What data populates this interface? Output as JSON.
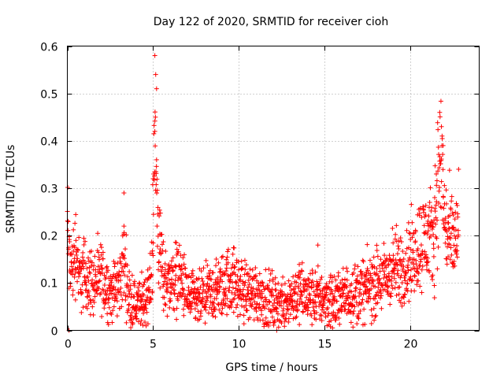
{
  "chart_data": {
    "type": "scatter",
    "title": "Day 122 of 2020, SRMTID for receiver cioh",
    "xlabel": "GPS time / hours",
    "ylabel": "SRMTID / TECUs",
    "xlim": [
      0,
      24
    ],
    "ylim": [
      0,
      0.6
    ],
    "xticks": [
      0,
      5,
      10,
      15,
      20
    ],
    "yticks": [
      0,
      0.1,
      0.2,
      0.3,
      0.4,
      0.5,
      0.6
    ],
    "x_tick_labels": [
      "0",
      "5",
      "10",
      "15",
      "20"
    ],
    "y_tick_labels": [
      "0",
      "0.1",
      "0.2",
      "0.3",
      "0.4",
      "0.5",
      "0.6"
    ],
    "grid": true,
    "marker": "+",
    "color": "#ff0000",
    "series": [
      {
        "name": "SRMTID",
        "trend": [
          [
            0.0,
            0.24
          ],
          [
            0.1,
            0.14
          ],
          [
            0.3,
            0.13
          ],
          [
            0.5,
            0.18
          ],
          [
            0.7,
            0.11
          ],
          [
            1.0,
            0.12
          ],
          [
            1.5,
            0.1
          ],
          [
            2.0,
            0.11
          ],
          [
            2.5,
            0.08
          ],
          [
            3.0,
            0.09
          ],
          [
            3.3,
            0.15
          ],
          [
            3.6,
            0.07
          ],
          [
            4.0,
            0.05
          ],
          [
            4.5,
            0.06
          ],
          [
            4.9,
            0.1
          ],
          [
            5.1,
            0.4
          ],
          [
            5.3,
            0.2
          ],
          [
            5.6,
            0.11
          ],
          [
            6.0,
            0.1
          ],
          [
            6.5,
            0.12
          ],
          [
            7.0,
            0.07
          ],
          [
            7.5,
            0.06
          ],
          [
            8.0,
            0.07
          ],
          [
            8.5,
            0.08
          ],
          [
            9.0,
            0.09
          ],
          [
            9.5,
            0.11
          ],
          [
            10.0,
            0.09
          ],
          [
            10.5,
            0.08
          ],
          [
            11.0,
            0.08
          ],
          [
            11.5,
            0.07
          ],
          [
            12.0,
            0.06
          ],
          [
            12.5,
            0.06
          ],
          [
            13.0,
            0.07
          ],
          [
            13.5,
            0.08
          ],
          [
            14.0,
            0.07
          ],
          [
            14.5,
            0.07
          ],
          [
            15.0,
            0.07
          ],
          [
            15.5,
            0.06
          ],
          [
            16.0,
            0.07
          ],
          [
            16.5,
            0.08
          ],
          [
            17.0,
            0.08
          ],
          [
            17.5,
            0.09
          ],
          [
            18.0,
            0.1
          ],
          [
            18.5,
            0.11
          ],
          [
            19.0,
            0.13
          ],
          [
            19.5,
            0.13
          ],
          [
            20.0,
            0.15
          ],
          [
            20.5,
            0.18
          ],
          [
            21.0,
            0.2
          ],
          [
            21.3,
            0.18
          ],
          [
            21.6,
            0.32
          ],
          [
            21.8,
            0.36
          ],
          [
            22.0,
            0.22
          ],
          [
            22.4,
            0.18
          ],
          [
            22.8,
            0.2
          ]
        ],
        "spikes": [
          [
            5.1,
            0.58
          ],
          [
            5.15,
            0.54
          ],
          [
            5.2,
            0.51
          ],
          [
            5.1,
            0.42
          ],
          [
            5.2,
            0.36
          ],
          [
            5.0,
            0.32
          ],
          [
            3.3,
            0.29
          ],
          [
            3.3,
            0.22
          ],
          [
            21.7,
            0.46
          ],
          [
            21.8,
            0.43
          ],
          [
            21.9,
            0.39
          ],
          [
            21.5,
            0.33
          ],
          [
            22.8,
            0.34
          ],
          [
            14.6,
            0.18
          ]
        ],
        "zero_points": [
          [
            0.1,
            0.0
          ],
          [
            12.2,
            0.0
          ]
        ]
      }
    ]
  }
}
